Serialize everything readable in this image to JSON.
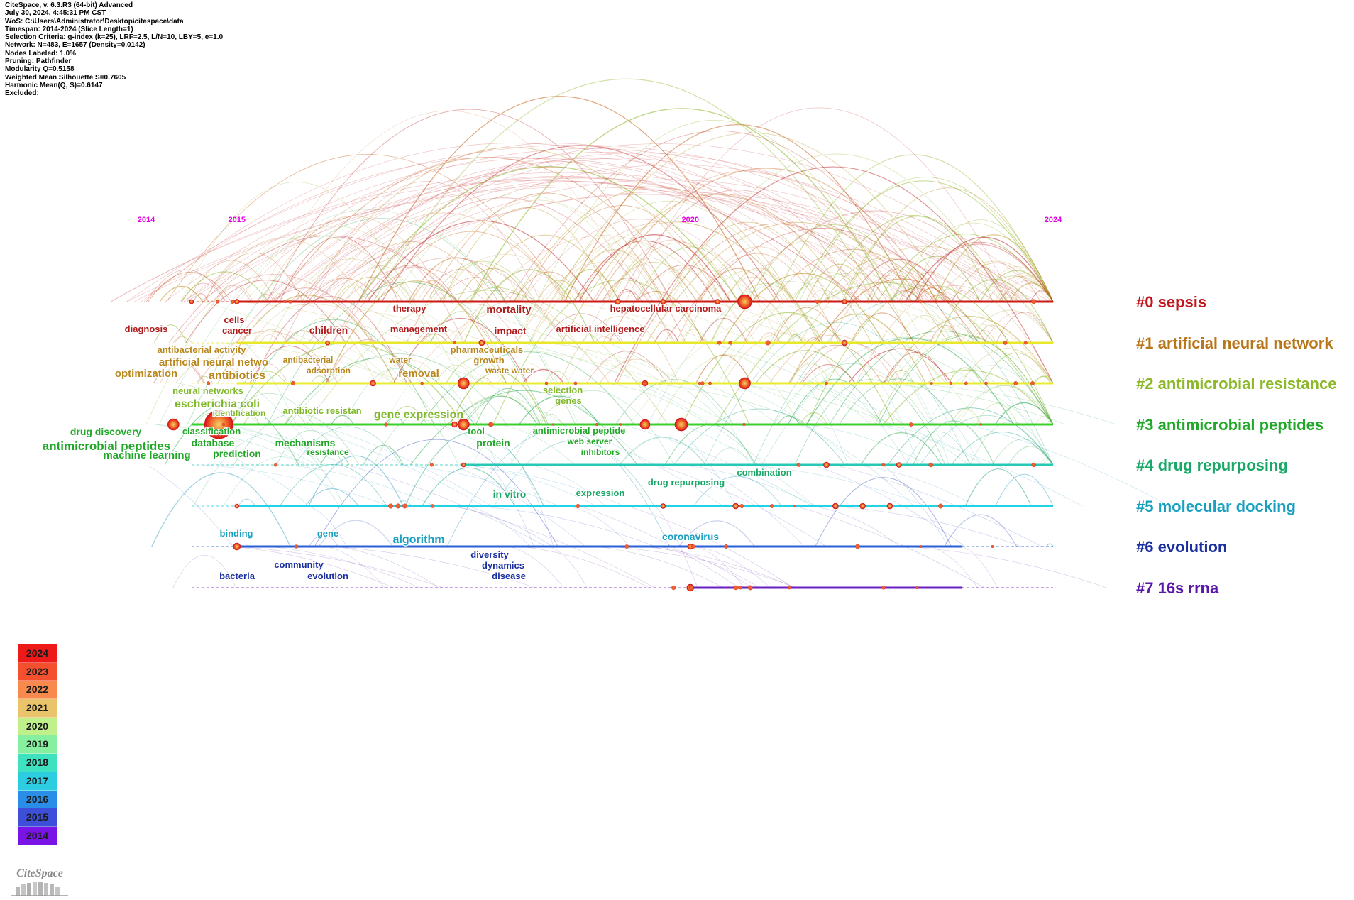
{
  "info_lines": [
    "CiteSpace, v. 6.3.R3 (64-bit) Advanced",
    "July 30, 2024, 4:45:31 PM CST",
    "WoS: C:\\Users\\Administrator\\Desktop\\citespace\\data",
    "Timespan: 2014-2024 (Slice Length=1)",
    "Selection Criteria: g-index (k=25), LRF=2.5, L/N=10, LBY=5, e=1.0",
    "Network: N=483, E=1657 (Density=0.0142)",
    "Nodes Labeled: 1.0%",
    "Pruning: Pathfinder",
    "Modularity Q=0.5158",
    "Weighted Mean Silhouette S=0.7605",
    "Harmonic Mean(Q, S)=0.6147",
    "Excluded:"
  ],
  "timeline": {
    "start_year": 2014,
    "end_year": 2024,
    "year_labels": [
      "2014",
      "2015",
      "2020",
      "2024"
    ]
  },
  "clusters": [
    {
      "label": "#0 sepsis",
      "color": "#c0161c",
      "line": "#cc1a14",
      "first_year": 2015,
      "last_year": 2024,
      "dashed_from": 2014.5
    },
    {
      "label": "#1 artificial neural network",
      "color": "#b8761a",
      "line": "#e8e82a",
      "first_year": 2015,
      "last_year": 2024,
      "dashed_from": 2014.5
    },
    {
      "label": "#2 antimicrobial resistance",
      "color": "#8cb829",
      "line": "#e8ec30",
      "first_year": 2015,
      "last_year": 2024,
      "dashed_from": 2014.5
    },
    {
      "label": "#3 antimicrobial peptides",
      "color": "#22a829",
      "line": "#3ccf2c",
      "first_year": 2014.5,
      "last_year": 2024,
      "dashed_from": 2014.5
    },
    {
      "label": "#4 drug repurposing",
      "color": "#1aa868",
      "line": "#26c9b6",
      "first_year": 2017.5,
      "last_year": 2024,
      "dashed_from": 2014.5
    },
    {
      "label": "#5 molecular docking",
      "color": "#18a0c0",
      "line": "#22d3e6",
      "first_year": 2015,
      "last_year": 2024,
      "dashed_from": 2014.5
    },
    {
      "label": "#6 evolution",
      "color": "#1a2fa0",
      "line": "#2a5fd6",
      "first_year": 2015,
      "last_year": 2023,
      "dashed_from": 2014.5
    },
    {
      "label": "#7 16s rrna",
      "color": "#5a18a8",
      "line": "#6a1fc0",
      "first_year": 2020,
      "last_year": 2023,
      "dashed_from": 2014.5
    }
  ],
  "keywords": [
    {
      "text": "therapy",
      "color": "#b01c1c",
      "size": 13
    },
    {
      "text": "mortality",
      "color": "#b01c1c",
      "size": 15
    },
    {
      "text": "hepatocellular carcinoma",
      "color": "#b01c1c",
      "size": 13
    },
    {
      "text": "cells",
      "color": "#b01c1c",
      "size": 13
    },
    {
      "text": "cancer",
      "color": "#b01c1c",
      "size": 13
    },
    {
      "text": "diagnosis",
      "color": "#b01c1c",
      "size": 13
    },
    {
      "text": "children",
      "color": "#b01c1c",
      "size": 14
    },
    {
      "text": "management",
      "color": "#b01c1c",
      "size": 13
    },
    {
      "text": "impact",
      "color": "#b01c1c",
      "size": 14
    },
    {
      "text": "artificial intelligence",
      "color": "#b01c1c",
      "size": 13
    },
    {
      "text": "antibacterial activity",
      "color": "#b8861a",
      "size": 13
    },
    {
      "text": "artificial neural netwo",
      "color": "#b8861a",
      "size": 15
    },
    {
      "text": "antibacterial",
      "color": "#b8861a",
      "size": 12
    },
    {
      "text": "adsorption",
      "color": "#b8861a",
      "size": 12
    },
    {
      "text": "water",
      "color": "#b8861a",
      "size": 12
    },
    {
      "text": "pharmaceuticals",
      "color": "#b8861a",
      "size": 13
    },
    {
      "text": "growth",
      "color": "#b8861a",
      "size": 13
    },
    {
      "text": "optimization",
      "color": "#b8861a",
      "size": 15
    },
    {
      "text": "antibiotics",
      "color": "#b8861a",
      "size": 16
    },
    {
      "text": "removal",
      "color": "#b8861a",
      "size": 15
    },
    {
      "text": "waste water",
      "color": "#b8861a",
      "size": 12
    },
    {
      "text": "neural networks",
      "color": "#7fb828",
      "size": 13
    },
    {
      "text": "escherichia coli",
      "color": "#7fb828",
      "size": 16
    },
    {
      "text": "identification",
      "color": "#7fb828",
      "size": 12
    },
    {
      "text": "antibiotic resistan",
      "color": "#7fb828",
      "size": 13
    },
    {
      "text": "gene expression",
      "color": "#7fb828",
      "size": 16
    },
    {
      "text": "selection",
      "color": "#7fb828",
      "size": 13
    },
    {
      "text": "genes",
      "color": "#7fb828",
      "size": 13
    },
    {
      "text": "drug discovery",
      "color": "#22a829",
      "size": 14
    },
    {
      "text": "classification",
      "color": "#22a829",
      "size": 13
    },
    {
      "text": "database",
      "color": "#22a829",
      "size": 14
    },
    {
      "text": "antimicrobial peptides",
      "color": "#22a829",
      "size": 17
    },
    {
      "text": "machine learning",
      "color": "#22a829",
      "size": 15
    },
    {
      "text": "prediction",
      "color": "#22a829",
      "size": 14
    },
    {
      "text": "mechanisms",
      "color": "#22a829",
      "size": 14
    },
    {
      "text": "resistance",
      "color": "#22a829",
      "size": 12
    },
    {
      "text": "tool",
      "color": "#22a829",
      "size": 13
    },
    {
      "text": "protein",
      "color": "#22a829",
      "size": 14
    },
    {
      "text": "antimicrobial peptide",
      "color": "#22a829",
      "size": 13
    },
    {
      "text": "web server",
      "color": "#22a829",
      "size": 12
    },
    {
      "text": "inhibitors",
      "color": "#22a829",
      "size": 12
    },
    {
      "text": "in vitro",
      "color": "#1aa868",
      "size": 14
    },
    {
      "text": "expression",
      "color": "#1aa868",
      "size": 13
    },
    {
      "text": "drug repurposing",
      "color": "#1aa868",
      "size": 13
    },
    {
      "text": "combination",
      "color": "#1aa868",
      "size": 13
    },
    {
      "text": "binding",
      "color": "#18a0c0",
      "size": 13
    },
    {
      "text": "gene",
      "color": "#18a0c0",
      "size": 13
    },
    {
      "text": "algorithm",
      "color": "#18a0c0",
      "size": 16
    },
    {
      "text": "coronavirus",
      "color": "#18a0c0",
      "size": 14
    },
    {
      "text": "community",
      "color": "#1a2fa0",
      "size": 13
    },
    {
      "text": "bacteria",
      "color": "#1a2fa0",
      "size": 13
    },
    {
      "text": "evolution",
      "color": "#1a2fa0",
      "size": 13
    },
    {
      "text": "diversity",
      "color": "#1a2fa0",
      "size": 13
    },
    {
      "text": "dynamics",
      "color": "#1a2fa0",
      "size": 13
    },
    {
      "text": "disease",
      "color": "#1a2fa0",
      "size": 13
    }
  ],
  "legend": [
    {
      "year": "2024",
      "color": "#ee1a1a"
    },
    {
      "year": "2023",
      "color": "#f4502e"
    },
    {
      "year": "2022",
      "color": "#f88a4e"
    },
    {
      "year": "2021",
      "color": "#e9c46a"
    },
    {
      "year": "2020",
      "color": "#bff08a"
    },
    {
      "year": "2019",
      "color": "#86f0a0"
    },
    {
      "year": "2018",
      "color": "#3fe2c0"
    },
    {
      "year": "2017",
      "color": "#2ccde0"
    },
    {
      "year": "2016",
      "color": "#2a8ee8"
    },
    {
      "year": "2015",
      "color": "#3d4ed8"
    },
    {
      "year": "2014",
      "color": "#7a14e6"
    }
  ],
  "logo_text": "CiteSpace"
}
